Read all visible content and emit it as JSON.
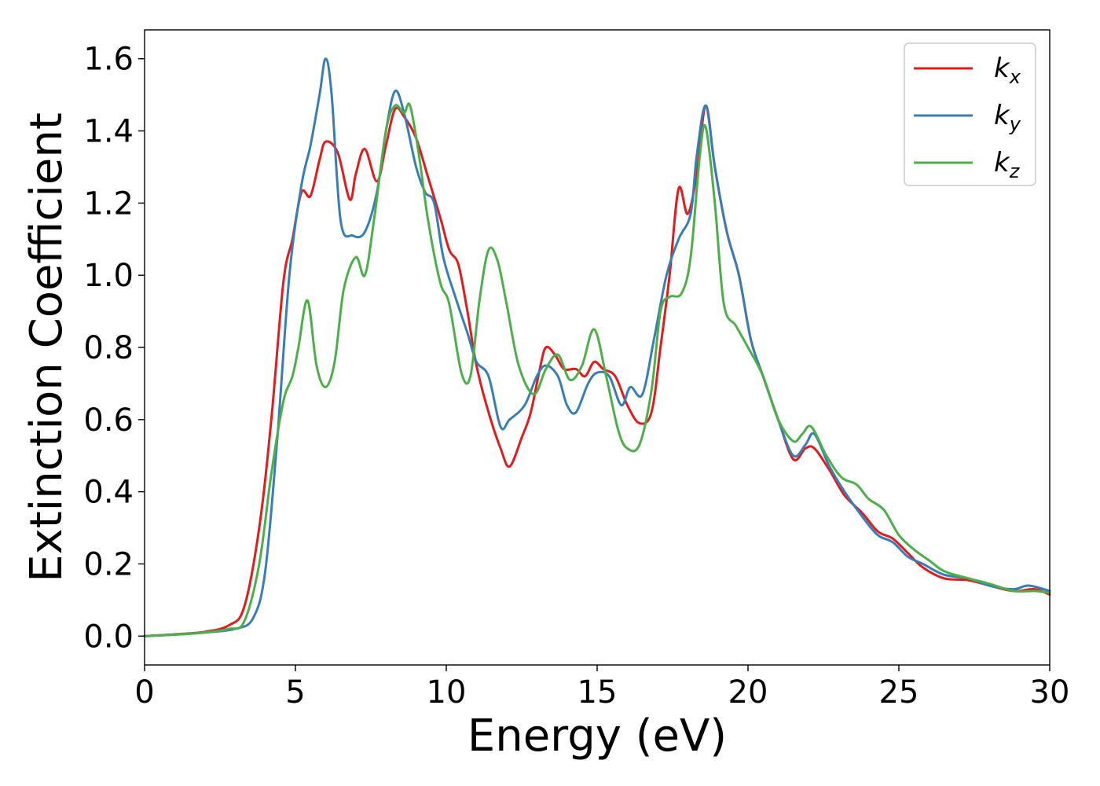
{
  "chart_data": {
    "type": "line",
    "title": "",
    "xlabel": "Energy (eV)",
    "ylabel": "Extinction Coefficient",
    "xlim": [
      0,
      30
    ],
    "ylim": [
      -0.08,
      1.68
    ],
    "xticks": [
      0,
      5,
      10,
      15,
      20,
      25,
      30
    ],
    "yticks": [
      0.0,
      0.2,
      0.4,
      0.6,
      0.8,
      1.0,
      1.2,
      1.4,
      1.6
    ],
    "ytick_labels": [
      "0.0",
      "0.2",
      "0.4",
      "0.6",
      "0.8",
      "1.0",
      "1.2",
      "1.4",
      "1.6"
    ],
    "grid": false,
    "legend_position": "top-right",
    "series": [
      {
        "name": "k_x",
        "legend_base": "k",
        "legend_sub": "x",
        "color": "#e41a1c",
        "points": [
          [
            0,
            0.0
          ],
          [
            1,
            0.005
          ],
          [
            2,
            0.012
          ],
          [
            2.8,
            0.03
          ],
          [
            3.3,
            0.08
          ],
          [
            3.8,
            0.3
          ],
          [
            4.2,
            0.6
          ],
          [
            4.6,
            0.98
          ],
          [
            4.9,
            1.1
          ],
          [
            5.2,
            1.23
          ],
          [
            5.5,
            1.22
          ],
          [
            5.8,
            1.32
          ],
          [
            6.0,
            1.37
          ],
          [
            6.4,
            1.34
          ],
          [
            6.8,
            1.21
          ],
          [
            7.0,
            1.28
          ],
          [
            7.3,
            1.35
          ],
          [
            7.7,
            1.26
          ],
          [
            8.0,
            1.36
          ],
          [
            8.3,
            1.46
          ],
          [
            8.6,
            1.44
          ],
          [
            9.0,
            1.38
          ],
          [
            9.4,
            1.27
          ],
          [
            9.8,
            1.16
          ],
          [
            10.1,
            1.07
          ],
          [
            10.4,
            1.03
          ],
          [
            10.7,
            0.9
          ],
          [
            11.0,
            0.75
          ],
          [
            11.4,
            0.62
          ],
          [
            11.8,
            0.52
          ],
          [
            12.1,
            0.47
          ],
          [
            12.5,
            0.55
          ],
          [
            12.8,
            0.62
          ],
          [
            13.1,
            0.74
          ],
          [
            13.3,
            0.8
          ],
          [
            13.6,
            0.78
          ],
          [
            13.9,
            0.74
          ],
          [
            14.3,
            0.74
          ],
          [
            14.6,
            0.72
          ],
          [
            14.9,
            0.76
          ],
          [
            15.2,
            0.74
          ],
          [
            15.6,
            0.72
          ],
          [
            16.0,
            0.64
          ],
          [
            16.4,
            0.59
          ],
          [
            16.8,
            0.62
          ],
          [
            17.1,
            0.8
          ],
          [
            17.4,
            1.0
          ],
          [
            17.7,
            1.24
          ],
          [
            18.0,
            1.17
          ],
          [
            18.3,
            1.28
          ],
          [
            18.6,
            1.47
          ],
          [
            18.9,
            1.3
          ],
          [
            19.3,
            1.12
          ],
          [
            19.7,
            1.0
          ],
          [
            20.1,
            0.82
          ],
          [
            20.5,
            0.72
          ],
          [
            21.0,
            0.6
          ],
          [
            21.5,
            0.49
          ],
          [
            21.9,
            0.52
          ],
          [
            22.2,
            0.52
          ],
          [
            22.7,
            0.46
          ],
          [
            23.2,
            0.39
          ],
          [
            23.8,
            0.34
          ],
          [
            24.3,
            0.29
          ],
          [
            24.8,
            0.27
          ],
          [
            25.3,
            0.23
          ],
          [
            25.8,
            0.19
          ],
          [
            26.5,
            0.16
          ],
          [
            27.3,
            0.155
          ],
          [
            28.0,
            0.14
          ],
          [
            28.8,
            0.125
          ],
          [
            29.5,
            0.13
          ],
          [
            30,
            0.115
          ]
        ]
      },
      {
        "name": "k_y",
        "legend_base": "k",
        "legend_sub": "y",
        "color": "#377eb8",
        "points": [
          [
            0,
            0.0
          ],
          [
            1,
            0.004
          ],
          [
            2,
            0.01
          ],
          [
            3.0,
            0.02
          ],
          [
            3.6,
            0.05
          ],
          [
            4.0,
            0.18
          ],
          [
            4.4,
            0.55
          ],
          [
            4.8,
            1.0
          ],
          [
            5.2,
            1.25
          ],
          [
            5.5,
            1.36
          ],
          [
            5.8,
            1.5
          ],
          [
            6.0,
            1.6
          ],
          [
            6.2,
            1.5
          ],
          [
            6.5,
            1.15
          ],
          [
            6.9,
            1.11
          ],
          [
            7.3,
            1.12
          ],
          [
            7.7,
            1.23
          ],
          [
            8.0,
            1.4
          ],
          [
            8.3,
            1.51
          ],
          [
            8.6,
            1.45
          ],
          [
            9.0,
            1.3
          ],
          [
            9.3,
            1.23
          ],
          [
            9.6,
            1.2
          ],
          [
            9.9,
            1.05
          ],
          [
            10.3,
            0.94
          ],
          [
            10.7,
            0.84
          ],
          [
            11.0,
            0.76
          ],
          [
            11.4,
            0.72
          ],
          [
            11.8,
            0.58
          ],
          [
            12.1,
            0.6
          ],
          [
            12.6,
            0.64
          ],
          [
            13.0,
            0.72
          ],
          [
            13.3,
            0.75
          ],
          [
            13.7,
            0.72
          ],
          [
            14.0,
            0.64
          ],
          [
            14.3,
            0.62
          ],
          [
            14.7,
            0.7
          ],
          [
            15.0,
            0.73
          ],
          [
            15.4,
            0.72
          ],
          [
            15.8,
            0.64
          ],
          [
            16.1,
            0.69
          ],
          [
            16.5,
            0.67
          ],
          [
            16.9,
            0.83
          ],
          [
            17.3,
            1.0
          ],
          [
            17.7,
            1.1
          ],
          [
            18.1,
            1.17
          ],
          [
            18.3,
            1.33
          ],
          [
            18.6,
            1.47
          ],
          [
            18.9,
            1.3
          ],
          [
            19.3,
            1.12
          ],
          [
            19.7,
            1.0
          ],
          [
            20.1,
            0.82
          ],
          [
            20.5,
            0.72
          ],
          [
            21.0,
            0.6
          ],
          [
            21.5,
            0.5
          ],
          [
            21.9,
            0.53
          ],
          [
            22.2,
            0.56
          ],
          [
            22.7,
            0.47
          ],
          [
            23.2,
            0.4
          ],
          [
            23.8,
            0.33
          ],
          [
            24.3,
            0.28
          ],
          [
            24.8,
            0.26
          ],
          [
            25.3,
            0.22
          ],
          [
            25.8,
            0.2
          ],
          [
            26.5,
            0.17
          ],
          [
            27.3,
            0.16
          ],
          [
            28.0,
            0.14
          ],
          [
            28.8,
            0.13
          ],
          [
            29.3,
            0.14
          ],
          [
            30,
            0.125
          ]
        ]
      },
      {
        "name": "k_z",
        "legend_base": "k",
        "legend_sub": "z",
        "color": "#4daf4a",
        "points": [
          [
            0,
            0.0
          ],
          [
            1,
            0.004
          ],
          [
            2,
            0.01
          ],
          [
            2.8,
            0.02
          ],
          [
            3.3,
            0.04
          ],
          [
            3.8,
            0.2
          ],
          [
            4.2,
            0.45
          ],
          [
            4.6,
            0.65
          ],
          [
            4.9,
            0.72
          ],
          [
            5.1,
            0.8
          ],
          [
            5.4,
            0.93
          ],
          [
            5.7,
            0.75
          ],
          [
            6.0,
            0.69
          ],
          [
            6.3,
            0.76
          ],
          [
            6.6,
            0.96
          ],
          [
            7.0,
            1.05
          ],
          [
            7.3,
            1.0
          ],
          [
            7.6,
            1.15
          ],
          [
            8.0,
            1.4
          ],
          [
            8.3,
            1.47
          ],
          [
            8.6,
            1.45
          ],
          [
            8.8,
            1.47
          ],
          [
            9.1,
            1.33
          ],
          [
            9.4,
            1.15
          ],
          [
            9.8,
            0.98
          ],
          [
            10.1,
            0.92
          ],
          [
            10.5,
            0.73
          ],
          [
            10.8,
            0.72
          ],
          [
            11.1,
            0.93
          ],
          [
            11.4,
            1.07
          ],
          [
            11.7,
            1.04
          ],
          [
            12.0,
            0.92
          ],
          [
            12.4,
            0.75
          ],
          [
            12.9,
            0.67
          ],
          [
            13.3,
            0.74
          ],
          [
            13.7,
            0.78
          ],
          [
            14.1,
            0.71
          ],
          [
            14.5,
            0.75
          ],
          [
            14.9,
            0.85
          ],
          [
            15.3,
            0.72
          ],
          [
            15.7,
            0.57
          ],
          [
            16.0,
            0.52
          ],
          [
            16.4,
            0.53
          ],
          [
            16.8,
            0.68
          ],
          [
            17.1,
            0.9
          ],
          [
            17.4,
            0.94
          ],
          [
            17.8,
            0.95
          ],
          [
            18.1,
            1.05
          ],
          [
            18.4,
            1.33
          ],
          [
            18.6,
            1.41
          ],
          [
            18.9,
            1.2
          ],
          [
            19.2,
            0.92
          ],
          [
            19.6,
            0.86
          ],
          [
            20.0,
            0.8
          ],
          [
            20.5,
            0.72
          ],
          [
            21.0,
            0.6
          ],
          [
            21.5,
            0.54
          ],
          [
            21.8,
            0.56
          ],
          [
            22.1,
            0.58
          ],
          [
            22.6,
            0.5
          ],
          [
            23.1,
            0.44
          ],
          [
            23.6,
            0.42
          ],
          [
            24.0,
            0.38
          ],
          [
            24.5,
            0.35
          ],
          [
            25.0,
            0.28
          ],
          [
            25.5,
            0.24
          ],
          [
            26.0,
            0.21
          ],
          [
            26.5,
            0.18
          ],
          [
            27.3,
            0.16
          ],
          [
            28.0,
            0.145
          ],
          [
            28.8,
            0.125
          ],
          [
            29.5,
            0.125
          ],
          [
            30,
            0.12
          ]
        ]
      }
    ]
  }
}
